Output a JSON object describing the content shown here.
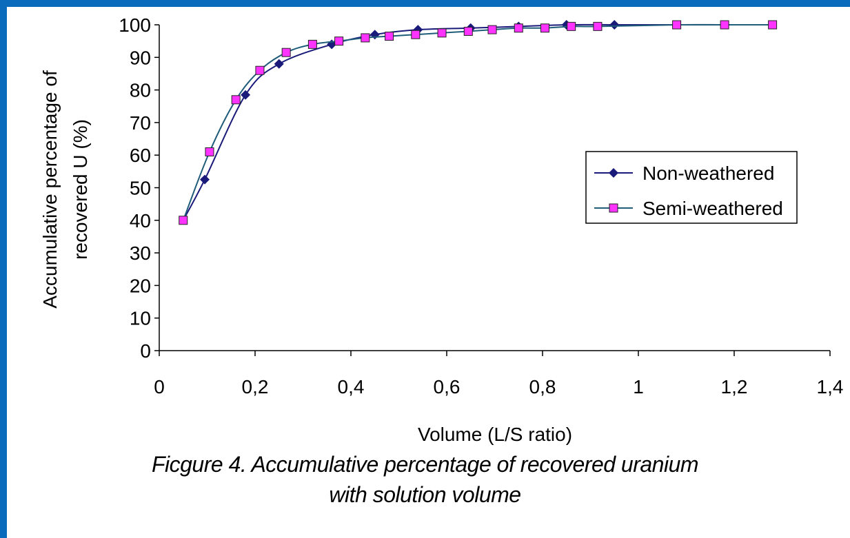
{
  "colors": {
    "border": "#0a6bbd",
    "series1": "#1a1a7a",
    "series2_line": "#1f5c7a",
    "series2_marker": "#ff33ff"
  },
  "caption": {
    "line1": "Ficgure 4. Accumulative percentage of recovered uranium",
    "line2": "with solution volume"
  },
  "chart_data": {
    "type": "line",
    "xlabel": "Volume (L/S ratio)",
    "ylabel_lines": [
      "Accumulative percentage of",
      "recovered U (%)"
    ],
    "xlim": [
      0,
      1.4
    ],
    "ylim": [
      0,
      100
    ],
    "x_ticks": [
      "0",
      "0,2",
      "0,4",
      "0,6",
      "0,8",
      "1",
      "1,2",
      "1,4"
    ],
    "y_ticks": [
      "0",
      "10",
      "20",
      "30",
      "40",
      "50",
      "60",
      "70",
      "80",
      "90",
      "100"
    ],
    "grid": false,
    "legend": "right",
    "series": [
      {
        "name": "Non-weathered",
        "marker": "diamond",
        "x": [
          0.05,
          0.095,
          0.18,
          0.25,
          0.36,
          0.45,
          0.54,
          0.65,
          0.75,
          0.85,
          0.95,
          1.0,
          1.08,
          1.18,
          1.28
        ],
        "y": [
          40,
          52.5,
          78.5,
          88,
          94,
          97,
          98.5,
          99,
          99.5,
          100,
          100,
          100,
          100,
          100,
          100
        ],
        "hidden_markers": [
          0,
          11,
          12,
          13,
          14
        ]
      },
      {
        "name": "Semi-weathered",
        "marker": "square",
        "x": [
          0.05,
          0.105,
          0.16,
          0.21,
          0.265,
          0.32,
          0.375,
          0.43,
          0.48,
          0.535,
          0.59,
          0.645,
          0.695,
          0.75,
          0.805,
          0.86,
          0.915,
          1.08,
          1.18,
          1.28
        ],
        "y": [
          40,
          61,
          77,
          86,
          91.5,
          94,
          95,
          96,
          96.5,
          97,
          97.5,
          98,
          98.5,
          99,
          99,
          99.5,
          99.5,
          100,
          100,
          100
        ]
      }
    ]
  }
}
